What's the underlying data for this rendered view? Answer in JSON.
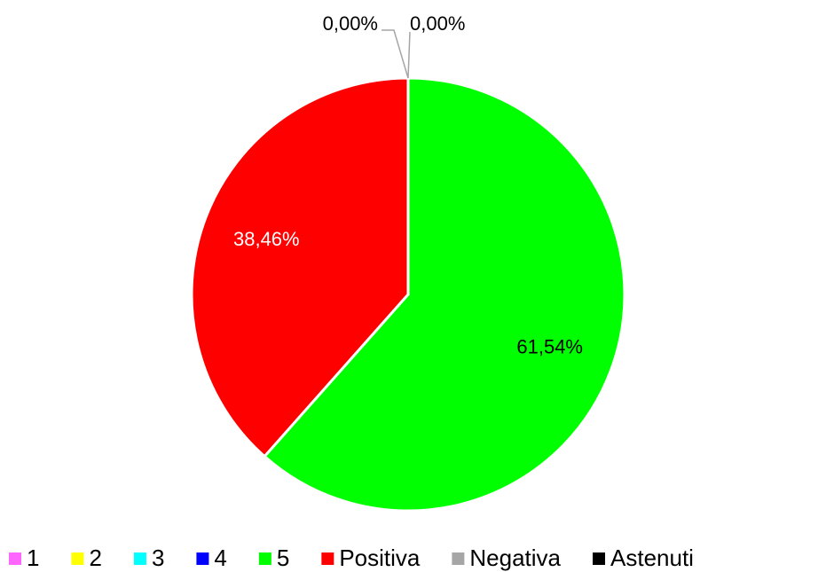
{
  "chart_data": {
    "type": "pie",
    "categories": [
      "1",
      "2",
      "3",
      "4",
      "5",
      "Positiva",
      "Negativa",
      "Astenuti"
    ],
    "values": [
      0,
      0,
      0,
      0,
      61.54,
      38.46,
      0,
      0
    ],
    "value_labels": [
      null,
      null,
      null,
      null,
      "61,54%",
      "38,46%",
      "0,00%",
      "0,00%"
    ],
    "colors": [
      "#ff66ff",
      "#ffff00",
      "#00ffff",
      "#0000ff",
      "#00ff00",
      "#ff0000",
      "#a6a6a6",
      "#000000"
    ],
    "legend": "bottom"
  }
}
